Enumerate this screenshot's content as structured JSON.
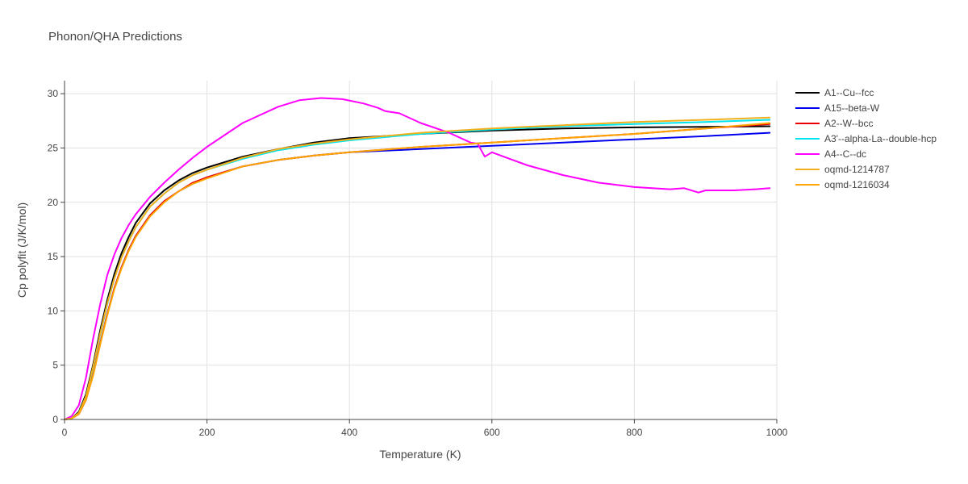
{
  "chart_data": {
    "type": "line",
    "title": "Phonon/QHA Predictions",
    "xlabel": "Temperature (K)",
    "ylabel": "Cp polyfit (J/K/mol)",
    "xlim": [
      0,
      1000
    ],
    "ylim": [
      0,
      31.2
    ],
    "xticks": [
      0,
      200,
      400,
      600,
      800,
      1000
    ],
    "yticks": [
      0,
      5,
      10,
      15,
      20,
      25,
      30
    ],
    "grid": true,
    "legend_position": "right",
    "series": [
      {
        "name": "A1--Cu--fcc",
        "color": "#000000",
        "x": [
          0,
          10,
          20,
          30,
          40,
          50,
          60,
          70,
          80,
          90,
          100,
          120,
          140,
          160,
          180,
          200,
          250,
          300,
          350,
          400,
          500,
          600,
          700,
          800,
          900,
          990
        ],
        "y": [
          0,
          0.1,
          0.7,
          2.3,
          5.0,
          8.2,
          11.0,
          13.4,
          15.3,
          16.8,
          18.1,
          19.9,
          21.1,
          22.0,
          22.7,
          23.2,
          24.2,
          24.9,
          25.5,
          25.9,
          26.3,
          26.6,
          26.8,
          26.9,
          26.95,
          27.0
        ]
      },
      {
        "name": "A15--beta-W",
        "color": "#0000ee",
        "x": [
          0,
          10,
          20,
          30,
          40,
          50,
          60,
          70,
          80,
          90,
          100,
          120,
          140,
          160,
          180,
          200,
          250,
          300,
          350,
          400,
          500,
          600,
          700,
          800,
          900,
          990
        ],
        "y": [
          0,
          0.1,
          0.5,
          1.8,
          4.1,
          7.0,
          9.7,
          12.1,
          14.0,
          15.6,
          16.9,
          18.8,
          20.1,
          21.0,
          21.7,
          22.3,
          23.3,
          23.9,
          24.3,
          24.6,
          24.9,
          25.2,
          25.5,
          25.8,
          26.1,
          26.4
        ]
      },
      {
        "name": "A2--W--bcc",
        "color": "#ee0000",
        "x": [
          0,
          10,
          20,
          30,
          40,
          50,
          60,
          70,
          80,
          90,
          100,
          120,
          140,
          160,
          180,
          200,
          250,
          300,
          350,
          400,
          500,
          600,
          700,
          800,
          900,
          990
        ],
        "y": [
          0,
          0.1,
          0.5,
          1.8,
          4.1,
          7.0,
          9.7,
          12.1,
          14.0,
          15.6,
          16.9,
          18.8,
          20.1,
          21.0,
          21.8,
          22.3,
          23.3,
          23.9,
          24.3,
          24.6,
          25.1,
          25.5,
          25.9,
          26.3,
          26.8,
          27.2
        ]
      },
      {
        "name": "A3'--alpha-La--double-hcp",
        "color": "#00e5ee",
        "x": [
          0,
          10,
          20,
          30,
          40,
          50,
          60,
          70,
          80,
          90,
          100,
          120,
          140,
          160,
          180,
          200,
          250,
          300,
          350,
          400,
          500,
          600,
          700,
          800,
          900,
          990
        ],
        "y": [
          0,
          0.1,
          0.6,
          2.1,
          4.7,
          7.8,
          10.6,
          13.0,
          14.9,
          16.4,
          17.7,
          19.6,
          20.8,
          21.8,
          22.5,
          23.0,
          24.0,
          24.8,
          25.3,
          25.7,
          26.3,
          26.7,
          27.0,
          27.2,
          27.4,
          27.6
        ]
      },
      {
        "name": "A4--C--dc",
        "color": "#ff00ff",
        "x": [
          0,
          10,
          20,
          30,
          40,
          50,
          60,
          70,
          80,
          90,
          100,
          120,
          140,
          160,
          180,
          200,
          250,
          300,
          330,
          360,
          390,
          420,
          440,
          450,
          470,
          500,
          540,
          570,
          580,
          590,
          600,
          650,
          700,
          750,
          800,
          850,
          870,
          890,
          900,
          940,
          970,
          990
        ],
        "y": [
          0,
          0.3,
          1.3,
          3.8,
          7.4,
          10.6,
          13.3,
          15.2,
          16.7,
          17.9,
          18.9,
          20.5,
          21.8,
          23.0,
          24.1,
          25.1,
          27.3,
          28.8,
          29.4,
          29.6,
          29.5,
          29.1,
          28.7,
          28.4,
          28.2,
          27.3,
          26.4,
          25.5,
          25.4,
          24.2,
          24.6,
          23.4,
          22.5,
          21.8,
          21.4,
          21.2,
          21.3,
          20.9,
          21.1,
          21.1,
          21.2,
          21.3
        ]
      },
      {
        "name": "oqmd-1214787",
        "color": "#f2b01e",
        "x": [
          0,
          10,
          20,
          30,
          40,
          50,
          60,
          70,
          80,
          90,
          100,
          120,
          140,
          160,
          180,
          200,
          250,
          300,
          350,
          400,
          500,
          600,
          700,
          800,
          900,
          990
        ],
        "y": [
          0,
          0.1,
          0.6,
          2.1,
          4.8,
          7.9,
          10.7,
          13.0,
          14.9,
          16.4,
          17.7,
          19.6,
          20.8,
          21.8,
          22.5,
          23.0,
          24.1,
          24.9,
          25.4,
          25.8,
          26.4,
          26.8,
          27.1,
          27.4,
          27.6,
          27.8
        ]
      },
      {
        "name": "oqmd-1216034",
        "color": "#ffa500",
        "x": [
          0,
          10,
          20,
          30,
          40,
          50,
          60,
          70,
          80,
          90,
          100,
          120,
          140,
          160,
          180,
          200,
          250,
          300,
          350,
          400,
          500,
          600,
          700,
          800,
          900,
          990
        ],
        "y": [
          0,
          0.1,
          0.5,
          1.8,
          4.0,
          6.9,
          9.6,
          12.0,
          13.9,
          15.5,
          16.8,
          18.7,
          20.0,
          21.0,
          21.7,
          22.2,
          23.3,
          23.9,
          24.3,
          24.6,
          25.1,
          25.5,
          25.9,
          26.3,
          26.8,
          27.3
        ]
      }
    ]
  }
}
